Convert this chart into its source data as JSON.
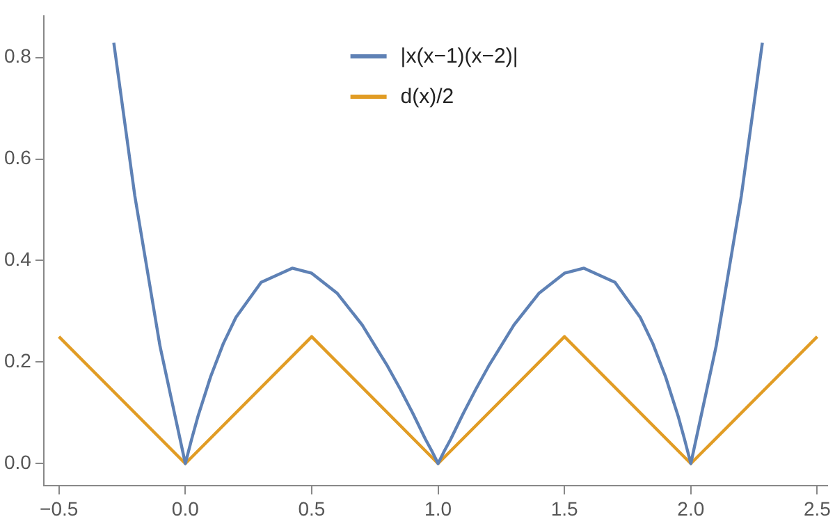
{
  "chart_data": {
    "type": "line",
    "legend": "top",
    "marker": "none",
    "line_style": "solid",
    "grid": false,
    "xlim": [
      -0.56,
      2.54
    ],
    "ylim": [
      -0.044,
      0.882
    ],
    "xticks": [
      {
        "value": -0.5,
        "label": "−0.5"
      },
      {
        "value": 0,
        "label": "0.0"
      },
      {
        "value": 0.5,
        "label": "0.5"
      },
      {
        "value": 1,
        "label": "1.0"
      },
      {
        "value": 1.5,
        "label": "1.5"
      },
      {
        "value": 2,
        "label": "2.0"
      },
      {
        "value": 2.5,
        "label": "2.5"
      }
    ],
    "yticks": [
      {
        "value": 0,
        "label": "0.0"
      },
      {
        "value": 0.2,
        "label": "0.2"
      },
      {
        "value": 0.4,
        "label": "0.4"
      },
      {
        "value": 0.6,
        "label": "0.6"
      },
      {
        "value": 0.8,
        "label": "0.8"
      }
    ],
    "series": [
      {
        "name": "|x(x−1)(x−2)|",
        "color": "#5e81b5",
        "x": [
          -0.283,
          -0.2,
          -0.1,
          0,
          0.025,
          0.05,
          0.1,
          0.15,
          0.2,
          0.3,
          0.423,
          0.5,
          0.6,
          0.7,
          0.8,
          0.85,
          0.9,
          0.95,
          0.975,
          1,
          1.025,
          1.05,
          1.1,
          1.15,
          1.2,
          1.3,
          1.4,
          1.5,
          1.577,
          1.7,
          1.8,
          1.85,
          1.9,
          1.95,
          1.975,
          2,
          2.1,
          2.2,
          2.283
        ],
        "values": [
          0.829,
          0.528,
          0.231,
          0,
          0.048,
          0.093,
          0.171,
          0.236,
          0.288,
          0.357,
          0.385,
          0.375,
          0.336,
          0.273,
          0.192,
          0.147,
          0.099,
          0.048,
          0.025,
          0,
          0.025,
          0.048,
          0.099,
          0.147,
          0.192,
          0.273,
          0.336,
          0.375,
          0.385,
          0.357,
          0.288,
          0.236,
          0.171,
          0.093,
          0.048,
          0,
          0.231,
          0.528,
          0.829
        ]
      },
      {
        "name": "d(x)/2",
        "color": "#e19c24",
        "x": [
          -0.5,
          0,
          0.5,
          1,
          1.5,
          2,
          2.5
        ],
        "values": [
          0.25,
          0,
          0.25,
          0,
          0.25,
          0,
          0.25
        ]
      }
    ]
  }
}
